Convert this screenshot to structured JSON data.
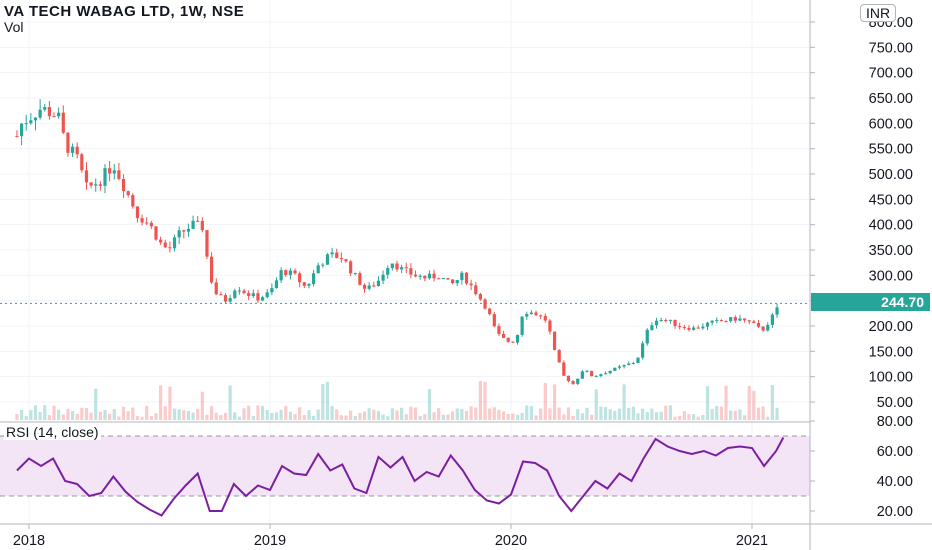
{
  "header": {
    "title": "VA TECH WABAG LTD, 1W, NSE",
    "volume_label": "Vol",
    "currency": "INR"
  },
  "rsi": {
    "label": "RSI (14, close)"
  },
  "last_price": "244.70",
  "colors": {
    "up": "#26a69a",
    "down": "#ef5350",
    "rsi_line": "#7b1fa2",
    "rsi_band": "#f3e5f5"
  },
  "chart_data": [
    {
      "type": "candlestick",
      "title": "VA TECH WABAG LTD, 1W, NSE",
      "x_ticks": [
        "2018",
        "2019",
        "2020",
        "2021"
      ],
      "y_ticks": [
        "50.00",
        "100.00",
        "150.00",
        "200.00",
        "250.00",
        "300.00",
        "350.00",
        "400.00",
        "450.00",
        "500.00",
        "550.00",
        "600.00",
        "650.00",
        "700.00",
        "750.00",
        "800.00"
      ],
      "ylim": [
        30,
        810
      ],
      "last_close": 244.7,
      "close_path": [
        [
          2017.95,
          575
        ],
        [
          2017.97,
          600
        ],
        [
          2018.05,
          630
        ],
        [
          2018.12,
          615
        ],
        [
          2018.15,
          560
        ],
        [
          2018.2,
          530
        ],
        [
          2018.24,
          470
        ],
        [
          2018.3,
          490
        ],
        [
          2018.35,
          520
        ],
        [
          2018.4,
          470
        ],
        [
          2018.45,
          420
        ],
        [
          2018.5,
          400
        ],
        [
          2018.55,
          360
        ],
        [
          2018.58,
          350
        ],
        [
          2018.62,
          380
        ],
        [
          2018.68,
          400
        ],
        [
          2018.72,
          395
        ],
        [
          2018.75,
          300
        ],
        [
          2018.78,
          260
        ],
        [
          2018.82,
          250
        ],
        [
          2018.86,
          280
        ],
        [
          2018.9,
          265
        ],
        [
          2018.95,
          255
        ],
        [
          2019.0,
          265
        ],
        [
          2019.05,
          310
        ],
        [
          2019.1,
          300
        ],
        [
          2019.15,
          275
        ],
        [
          2019.2,
          320
        ],
        [
          2019.25,
          340
        ],
        [
          2019.3,
          335
        ],
        [
          2019.35,
          300
        ],
        [
          2019.4,
          270
        ],
        [
          2019.45,
          290
        ],
        [
          2019.5,
          330
        ],
        [
          2019.55,
          310
        ],
        [
          2019.6,
          300
        ],
        [
          2019.65,
          295
        ],
        [
          2019.7,
          300
        ],
        [
          2019.75,
          280
        ],
        [
          2019.8,
          300
        ],
        [
          2019.85,
          270
        ],
        [
          2019.9,
          235
        ],
        [
          2019.94,
          185
        ],
        [
          2019.98,
          170
        ],
        [
          2020.02,
          170
        ],
        [
          2020.05,
          230
        ],
        [
          2020.1,
          225
        ],
        [
          2020.15,
          210
        ],
        [
          2020.18,
          150
        ],
        [
          2020.22,
          100
        ],
        [
          2020.26,
          85
        ],
        [
          2020.3,
          115
        ],
        [
          2020.34,
          100
        ],
        [
          2020.4,
          110
        ],
        [
          2020.46,
          120
        ],
        [
          2020.52,
          130
        ],
        [
          2020.57,
          195
        ],
        [
          2020.6,
          215
        ],
        [
          2020.65,
          210
        ],
        [
          2020.7,
          200
        ],
        [
          2020.76,
          195
        ],
        [
          2020.82,
          205
        ],
        [
          2020.88,
          210
        ],
        [
          2020.94,
          215
        ],
        [
          2021.0,
          205
        ],
        [
          2021.04,
          190
        ],
        [
          2021.08,
          215
        ],
        [
          2021.12,
          244.7
        ]
      ],
      "volume": {
        "label": "Vol"
      }
    },
    {
      "type": "line",
      "title": "RSI (14, close)",
      "y_ticks": [
        "20.00",
        "40.00",
        "60.00",
        "80.00"
      ],
      "ylim": [
        13,
        83
      ],
      "band": [
        30,
        70
      ],
      "x": [
        2017.95,
        2018.0,
        2018.05,
        2018.1,
        2018.15,
        2018.2,
        2018.25,
        2018.3,
        2018.35,
        2018.4,
        2018.45,
        2018.5,
        2018.55,
        2018.6,
        2018.65,
        2018.7,
        2018.75,
        2018.8,
        2018.85,
        2018.9,
        2018.95,
        2019.0,
        2019.05,
        2019.1,
        2019.15,
        2019.2,
        2019.25,
        2019.3,
        2019.35,
        2019.4,
        2019.45,
        2019.5,
        2019.55,
        2019.6,
        2019.65,
        2019.7,
        2019.75,
        2019.8,
        2019.85,
        2019.9,
        2019.95,
        2020.0,
        2020.05,
        2020.1,
        2020.15,
        2020.2,
        2020.25,
        2020.3,
        2020.35,
        2020.4,
        2020.45,
        2020.5,
        2020.55,
        2020.6,
        2020.65,
        2020.7,
        2020.75,
        2020.8,
        2020.85,
        2020.9,
        2020.95,
        2021.0,
        2021.05,
        2021.1,
        2021.13
      ],
      "values": [
        47,
        55,
        50,
        55,
        40,
        38,
        30,
        32,
        43,
        33,
        26,
        21,
        17,
        28,
        37,
        45,
        20,
        20,
        38,
        30,
        37,
        34,
        50,
        45,
        44,
        58,
        47,
        51,
        35,
        32,
        56,
        49,
        56,
        40,
        46,
        43,
        57,
        47,
        34,
        27,
        25,
        31,
        53,
        52,
        47,
        30,
        20,
        30,
        40,
        35,
        45,
        40,
        55,
        68,
        63,
        60,
        58,
        60,
        57,
        62,
        63,
        62,
        50,
        60,
        69
      ]
    }
  ]
}
